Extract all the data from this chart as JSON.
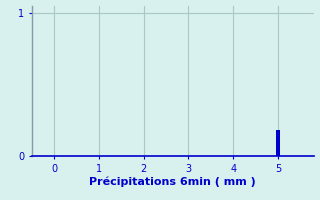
{
  "bg_color": "#d8f0ee",
  "bar_x": [
    5
  ],
  "bar_height": [
    0.18
  ],
  "bar_color": "#0000cc",
  "bar_width": 0.08,
  "xlim": [
    -0.5,
    5.8
  ],
  "ylim": [
    0,
    1.05
  ],
  "xticks": [
    0,
    1,
    2,
    3,
    4,
    5
  ],
  "yticks": [
    0,
    1
  ],
  "xlabel": "Précipitations 6min ( mm )",
  "xlabel_color": "#0000cc",
  "tick_color": "#0000cc",
  "grid_color": "#a8c8c4",
  "spine_color": "#8899aa",
  "axis_color": "#0000cc",
  "font_size_label": 8,
  "font_size_tick": 7
}
